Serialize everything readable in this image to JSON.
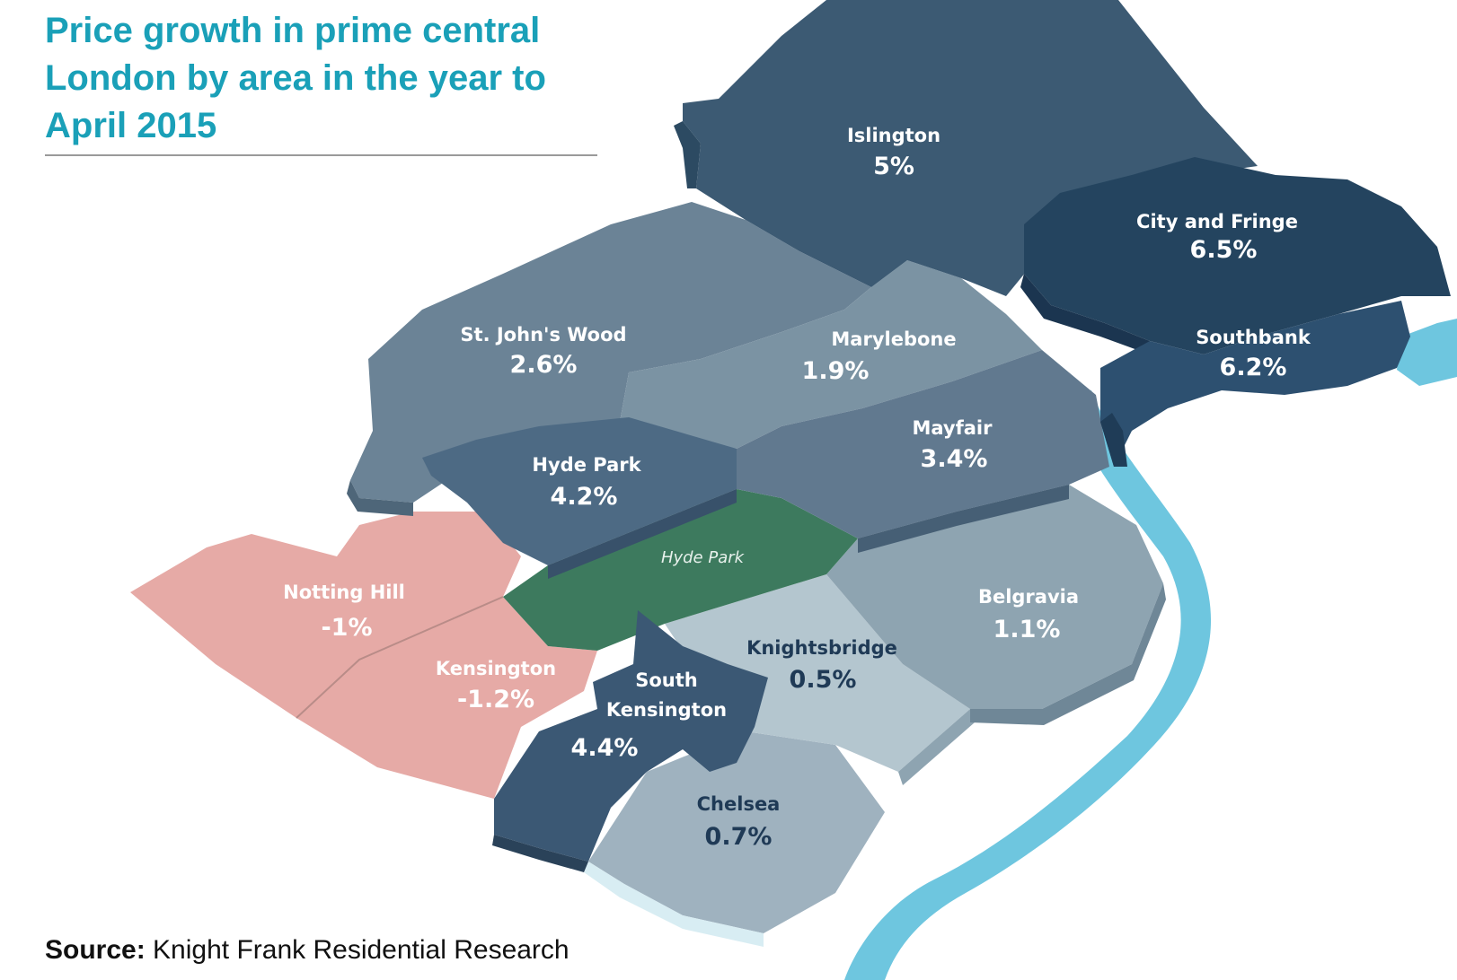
{
  "title": "Price growth in prime central London by area in the year to April 2015",
  "source": {
    "label": "Source:",
    "text": "Knight Frank Residential Research"
  },
  "park": {
    "name": "Hyde Park"
  },
  "areas": [
    {
      "name": "Islington",
      "value": "5%"
    },
    {
      "name": "City and Fringe",
      "value": "6.5%"
    },
    {
      "name": "Southbank",
      "value": "6.2%"
    },
    {
      "name": "St. John's Wood",
      "value": "2.6%"
    },
    {
      "name": "Marylebone",
      "value": "1.9%"
    },
    {
      "name": "Mayfair",
      "value": "3.4%"
    },
    {
      "name": "Hyde Park",
      "value": "4.2%"
    },
    {
      "name": "Notting Hill",
      "value": "-1%"
    },
    {
      "name": "Kensington",
      "value": "-1.2%"
    },
    {
      "name": "Belgravia",
      "value": "1.1%"
    },
    {
      "name": "Knightsbridge",
      "value": "0.5%"
    },
    {
      "name": "South",
      "value": "4.4%",
      "name_line2": "Kensington"
    },
    {
      "name": "Chelsea",
      "value": "0.7%"
    }
  ],
  "colors": {
    "title": "#1aa0b8",
    "river": "#6ec6df",
    "park": "#3d7a5e",
    "negative": "#e6aaa6",
    "highest": "#24445f"
  }
}
